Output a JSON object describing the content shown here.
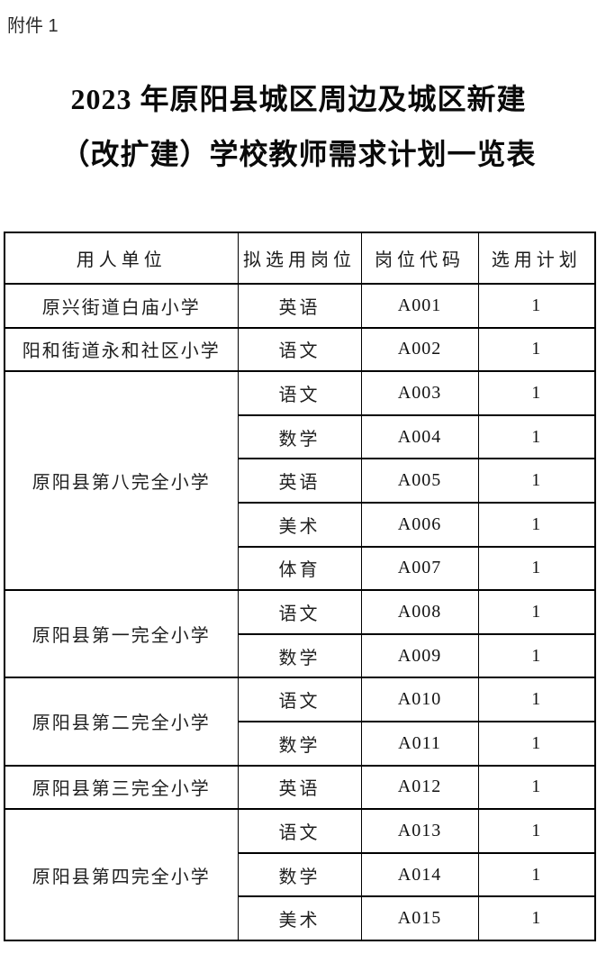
{
  "page": {
    "attachment_label": "附件 1",
    "title_line1": "2023 年原阳县城区周边及城区新建",
    "title_line2": "（改扩建）学校教师需求计划一览表"
  },
  "table": {
    "headers": [
      "用人单位",
      "拟选用岗位",
      "岗位代码",
      "选用计划"
    ],
    "groups": [
      {
        "unit": "原兴街道白庙小学",
        "rows": [
          {
            "position": "英语",
            "code": "A001",
            "plan": "1"
          }
        ]
      },
      {
        "unit": "阳和街道永和社区小学",
        "rows": [
          {
            "position": "语文",
            "code": "A002",
            "plan": "1"
          }
        ]
      },
      {
        "unit": "原阳县第八完全小学",
        "rows": [
          {
            "position": "语文",
            "code": "A003",
            "plan": "1"
          },
          {
            "position": "数学",
            "code": "A004",
            "plan": "1"
          },
          {
            "position": "英语",
            "code": "A005",
            "plan": "1"
          },
          {
            "position": "美术",
            "code": "A006",
            "plan": "1"
          },
          {
            "position": "体育",
            "code": "A007",
            "plan": "1"
          }
        ]
      },
      {
        "unit": "原阳县第一完全小学",
        "rows": [
          {
            "position": "语文",
            "code": "A008",
            "plan": "1"
          },
          {
            "position": "数学",
            "code": "A009",
            "plan": "1"
          }
        ]
      },
      {
        "unit": "原阳县第二完全小学",
        "rows": [
          {
            "position": "语文",
            "code": "A010",
            "plan": "1"
          },
          {
            "position": "数学",
            "code": "A011",
            "plan": "1"
          }
        ]
      },
      {
        "unit": "原阳县第三完全小学",
        "rows": [
          {
            "position": "英语",
            "code": "A012",
            "plan": "1"
          }
        ]
      },
      {
        "unit": "原阳县第四完全小学",
        "rows": [
          {
            "position": "语文",
            "code": "A013",
            "plan": "1"
          },
          {
            "position": "数学",
            "code": "A014",
            "plan": "1"
          },
          {
            "position": "美术",
            "code": "A015",
            "plan": "1"
          }
        ]
      }
    ]
  }
}
